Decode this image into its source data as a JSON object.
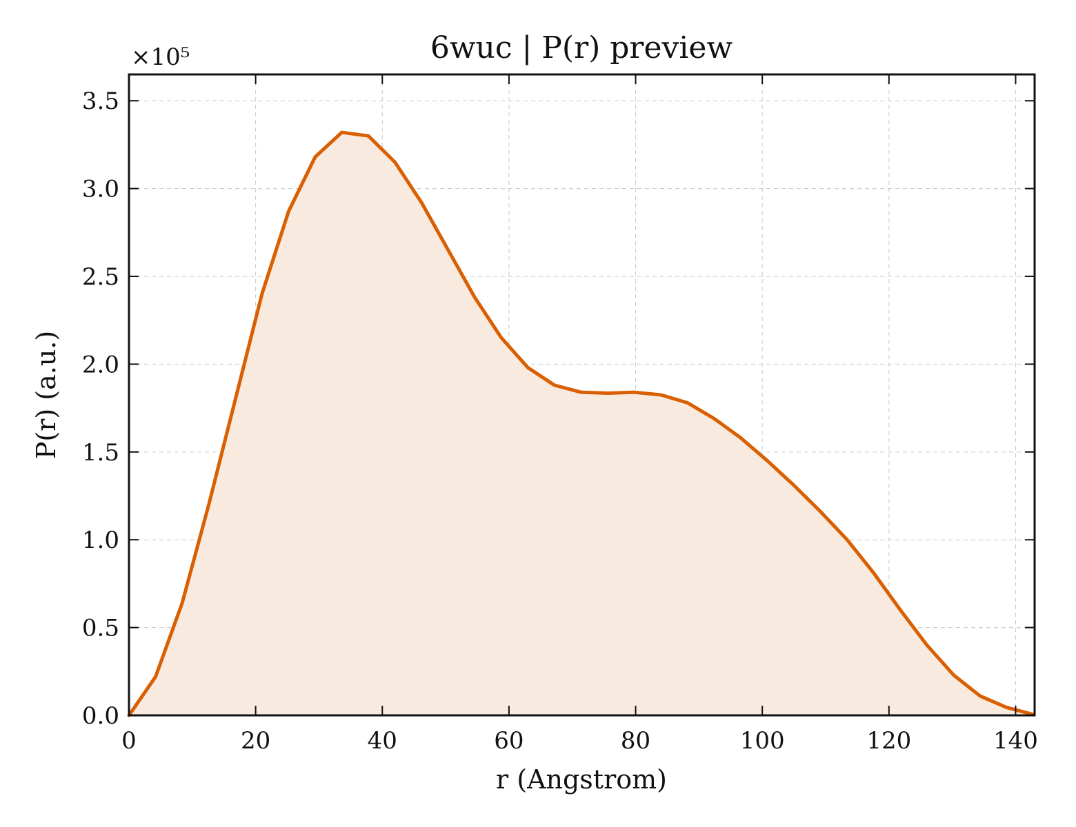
{
  "chart_data": {
    "type": "area",
    "title": "6wuc | P(r) preview",
    "xlabel": "r (Angstrom)",
    "ylabel": "P(r) (a.u.)",
    "y_scale_label": "×10⁵",
    "xlim": [
      0,
      143
    ],
    "ylim": [
      0,
      3.65
    ],
    "x_ticks": [
      0,
      20,
      40,
      60,
      80,
      100,
      120,
      140
    ],
    "x_tick_labels": [
      "0",
      "20",
      "40",
      "60",
      "80",
      "100",
      "120",
      "140"
    ],
    "y_ticks": [
      0,
      0.5,
      1.0,
      1.5,
      2.0,
      2.5,
      3.0,
      3.5
    ],
    "y_tick_labels": [
      "0.0",
      "0.5",
      "1.0",
      "1.5",
      "2.0",
      "2.5",
      "3.0",
      "3.5"
    ],
    "grid": true,
    "line_color": "#d95f02",
    "fill_color": "#f9eadf",
    "series": [
      {
        "x": [
          0,
          4.2,
          8.4,
          12.6,
          16.8,
          21.0,
          25.2,
          29.4,
          33.6,
          37.8,
          42.0,
          46.2,
          50.4,
          54.6,
          58.8,
          63.0,
          67.2,
          71.4,
          75.6,
          79.8,
          84.0,
          88.2,
          92.4,
          96.6,
          100.8,
          105.0,
          109.2,
          113.4,
          117.6,
          121.8,
          126.0,
          130.2,
          134.4,
          138.6,
          142.8
        ],
        "y": [
          0.0,
          0.22,
          0.64,
          1.2,
          1.8,
          2.4,
          2.87,
          3.18,
          3.32,
          3.3,
          3.15,
          2.92,
          2.65,
          2.38,
          2.15,
          1.98,
          1.88,
          1.84,
          1.835,
          1.84,
          1.825,
          1.78,
          1.69,
          1.58,
          1.45,
          1.31,
          1.16,
          1.0,
          0.81,
          0.6,
          0.4,
          0.23,
          0.11,
          0.045,
          0.005
        ]
      }
    ]
  }
}
